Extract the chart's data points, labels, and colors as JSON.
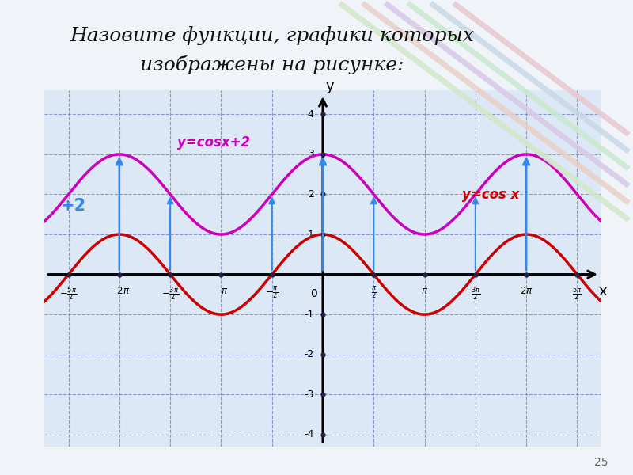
{
  "title_line1": "Назовите функции, графики которых",
  "title_line2": "изображены на рисунке:",
  "title_fontsize": 18,
  "bg_color": "#f0f4f8",
  "plot_bg_color": "#dce8f5",
  "grid_color": "#6677bb",
  "cos_color": "#cc0000",
  "cos2_color": "#cc00bb",
  "arrow_color": "#3388ee",
  "text_color": "#111111",
  "label_cos": "y=cos x",
  "label_cos2": "y=cosx+2",
  "label_plus2": "+2",
  "xlim": [
    -8.6,
    8.6
  ],
  "ylim": [
    -4.3,
    4.6
  ],
  "x_ticks_pi_mult": [
    -2.5,
    -2.0,
    -1.5,
    -1.0,
    -0.5,
    0.5,
    1.0,
    1.5,
    2.0,
    2.5
  ],
  "y_ticks": [
    -4,
    -3,
    -2,
    -1,
    1,
    2,
    3,
    4
  ],
  "line_width": 2.5,
  "stripe_colors": [
    "#e8c8d0",
    "#c8d8e8",
    "#c8e8d0",
    "#d8c8e8",
    "#e8d0c8",
    "#d0e8c8"
  ]
}
